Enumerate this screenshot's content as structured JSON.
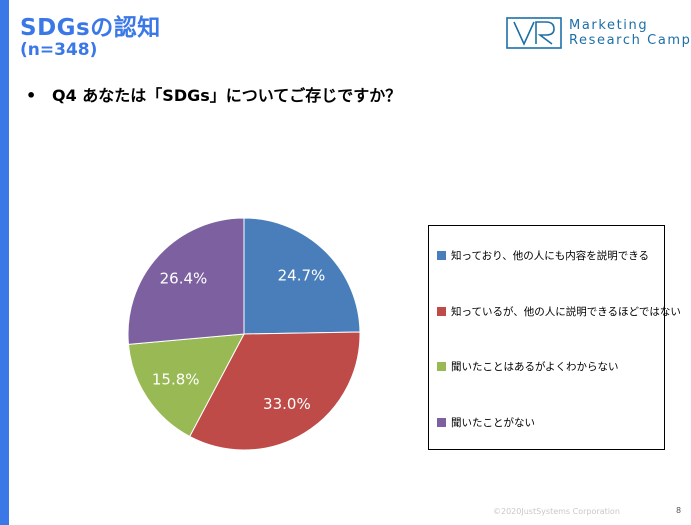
{
  "header": {
    "title": "SDGsの認知",
    "subtitle": "(n=348)",
    "logo_line1": "Marketing",
    "logo_line2": "Research Camp"
  },
  "question": {
    "bullet": "•",
    "text": "Q4 あなたは「SDGs」についてご存じですか？"
  },
  "chart_data": {
    "type": "pie",
    "title": "",
    "categories": [
      "知っており、他の人にも内容を説明できる",
      "知っているが、他の人に説明できるほどではない",
      "聞いたことはあるがよくわからない",
      "聞いたことがない"
    ],
    "values": [
      24.7,
      33.0,
      15.8,
      26.4
    ],
    "labels": [
      "24.7%",
      "33.0%",
      "15.8%",
      "26.4%"
    ],
    "colors": [
      "#4a7ebb",
      "#be4b48",
      "#98b954",
      "#7d60a0"
    ],
    "start": "12 o'clock, clockwise",
    "legend_position": "right"
  },
  "footer": {
    "copyright": "©2020JustSystems Corporation",
    "page": "8"
  }
}
